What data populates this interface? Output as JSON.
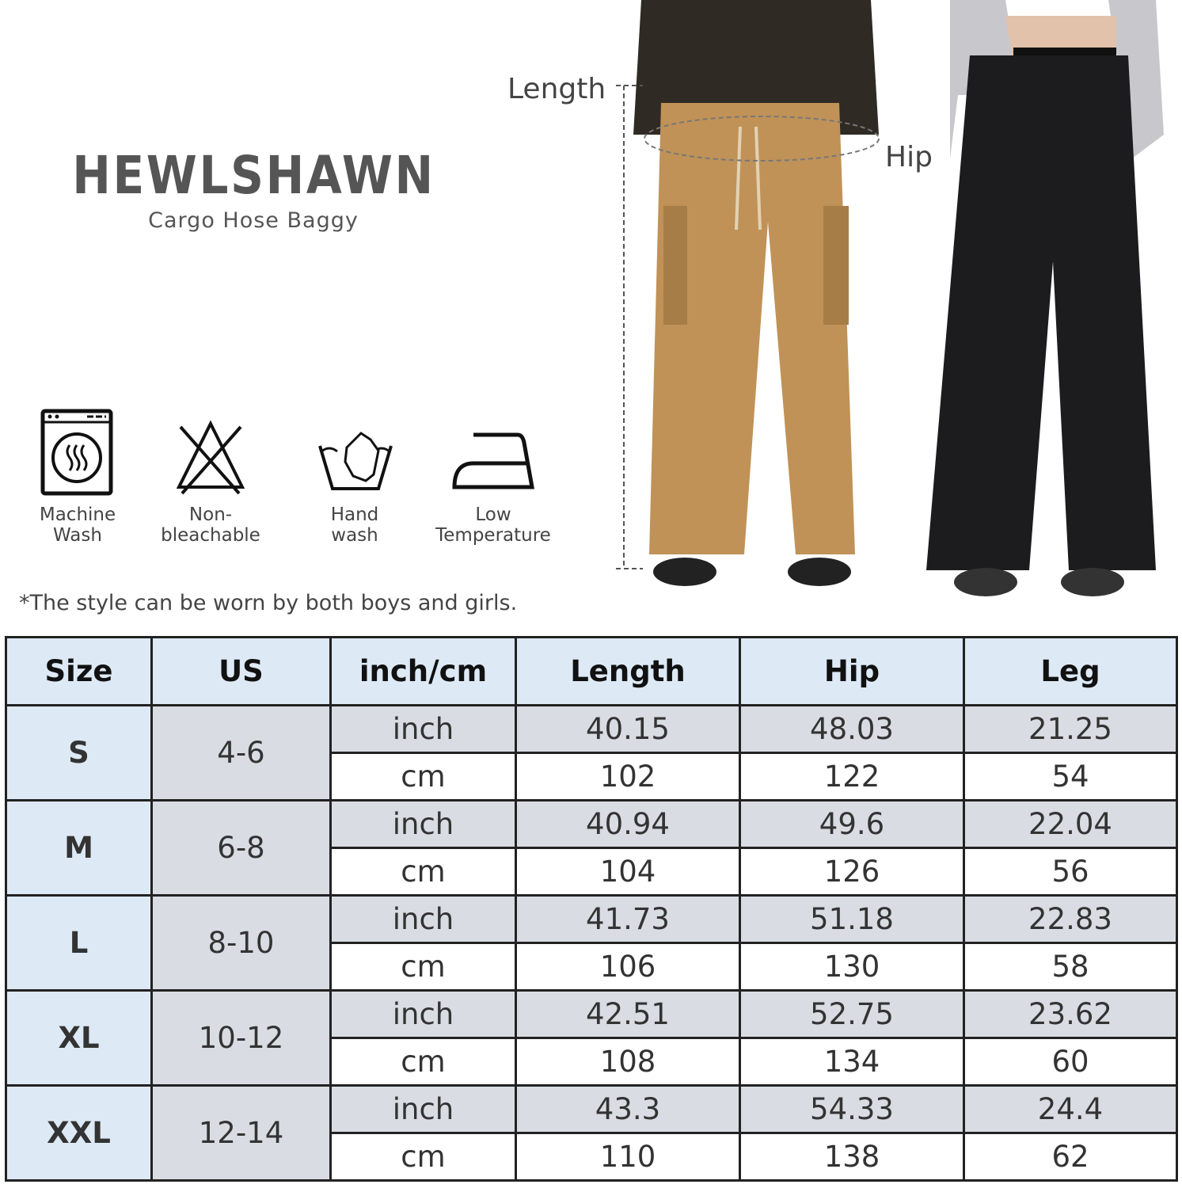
{
  "brand": {
    "name": "HEWLSHAWN",
    "subtitle": "Cargo Hose Baggy"
  },
  "measure_labels": {
    "length": "Length",
    "hip": "Hip"
  },
  "care": [
    {
      "icon": "machine-wash-icon",
      "label": "Machine\nWash"
    },
    {
      "icon": "non-bleach-icon",
      "label": "Non-\nbleachable"
    },
    {
      "icon": "hand-wash-icon",
      "label": "Hand\nwash"
    },
    {
      "icon": "low-iron-icon",
      "label": "Low\nTemperature"
    }
  ],
  "note": "*The style can be worn by both boys and girls.",
  "colors": {
    "header_bg": "#dde9f5",
    "shaded_bg": "#d9dce3",
    "khaki": "#c09257",
    "black_pants": "#1c1c1e"
  },
  "size_table": {
    "headers": [
      "Size",
      "US",
      "inch/cm",
      "Length",
      "Hip",
      "Leg"
    ],
    "rows": [
      {
        "size": "S",
        "us": "4-6",
        "inch": [
          "inch",
          "40.15",
          "48.03",
          "21.25"
        ],
        "cm": [
          "cm",
          "102",
          "122",
          "54"
        ]
      },
      {
        "size": "M",
        "us": "6-8",
        "inch": [
          "inch",
          "40.94",
          "49.6",
          "22.04"
        ],
        "cm": [
          "cm",
          "104",
          "126",
          "56"
        ]
      },
      {
        "size": "L",
        "us": "8-10",
        "inch": [
          "inch",
          "41.73",
          "51.18",
          "22.83"
        ],
        "cm": [
          "cm",
          "106",
          "130",
          "58"
        ]
      },
      {
        "size": "XL",
        "us": "10-12",
        "inch": [
          "inch",
          "42.51",
          "52.75",
          "23.62"
        ],
        "cm": [
          "cm",
          "108",
          "134",
          "60"
        ]
      },
      {
        "size": "XXL",
        "us": "12-14",
        "inch": [
          "inch",
          "43.3",
          "54.33",
          "24.4"
        ],
        "cm": [
          "cm",
          "110",
          "138",
          "62"
        ]
      }
    ]
  }
}
